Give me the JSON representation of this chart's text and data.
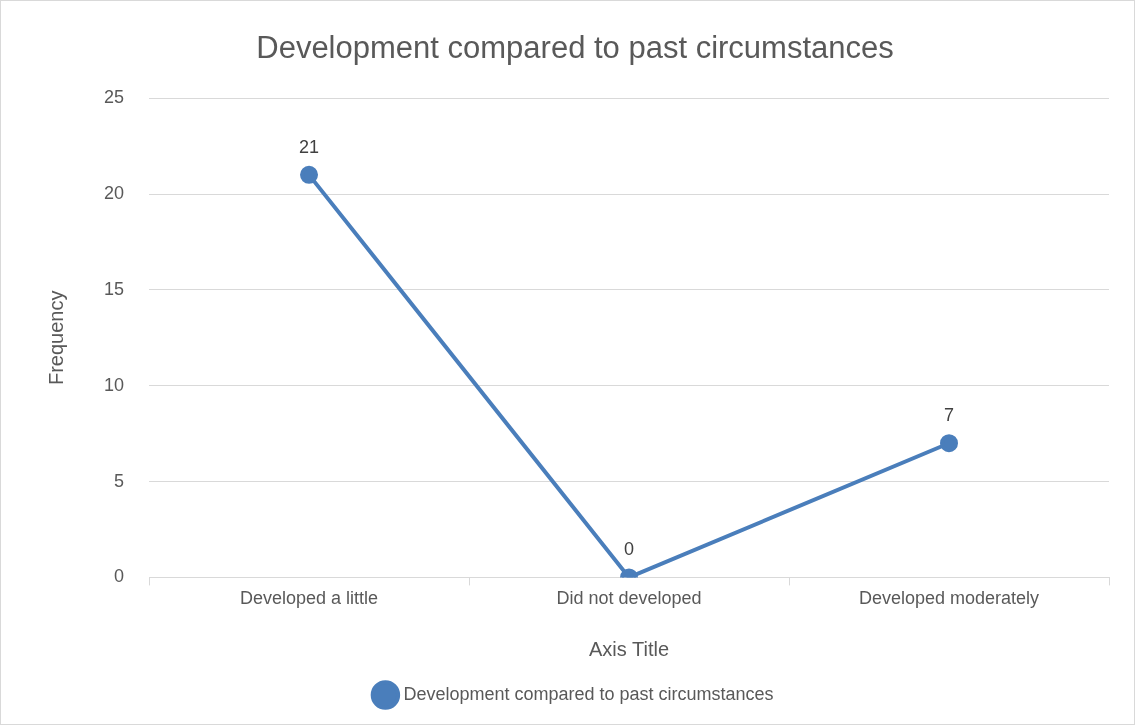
{
  "chart_data": {
    "type": "line",
    "title": "Development compared to past circumstances",
    "xlabel": "Axis Title",
    "ylabel": "Frequency",
    "categories": [
      "Developed a little",
      "Did not developed",
      "Developed moderately"
    ],
    "series": [
      {
        "name": "Development compared to past circumstances",
        "color": "#4a7ebb",
        "values": [
          21,
          0,
          7
        ]
      }
    ],
    "ylim": [
      0,
      25
    ],
    "yticks": [
      0,
      5,
      10,
      15,
      20,
      25
    ],
    "grid": "y",
    "legend": "bottom",
    "marker": "circle",
    "line_style": "solid",
    "data_labels": true
  }
}
